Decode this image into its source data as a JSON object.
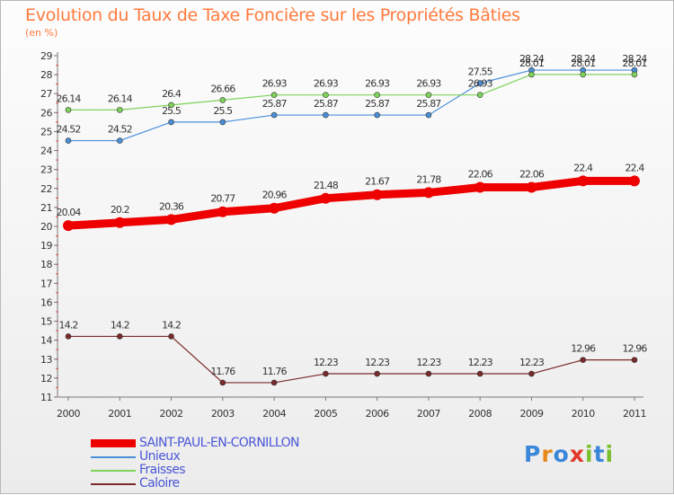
{
  "title": "Evolution du Taux de Taxe Foncière sur les Propriétés Bâties",
  "unit_label": "(en %)",
  "logo": {
    "text": "Proxiti",
    "colors": [
      "#3a86d9",
      "#e8891c",
      "#3a86d9",
      "#e23a2a",
      "#7bbf2f",
      "#3a86d9",
      "#7bbf2f"
    ]
  },
  "chart_data": {
    "type": "line",
    "title": "Evolution du Taux de Taxe Foncière sur les Propriétés Bâties",
    "ylabel": "(en %)",
    "xlabel": "",
    "ylim": [
      11,
      29
    ],
    "yticks": [
      11,
      12,
      13,
      14,
      15,
      16,
      17,
      18,
      19,
      20,
      21,
      22,
      23,
      24,
      25,
      26,
      27,
      28,
      29
    ],
    "x": [
      "2000",
      "2001",
      "2002",
      "2003",
      "2004",
      "2005",
      "2006",
      "2007",
      "2008",
      "2009",
      "2010",
      "2011"
    ],
    "grid": false,
    "legend_position": "bottom-left",
    "series": [
      {
        "name": "SAINT-PAUL-EN-CORNILLON",
        "color": "#ee0000",
        "values": [
          20.04,
          20.2,
          20.36,
          20.77,
          20.96,
          21.48,
          21.67,
          21.78,
          22.06,
          22.06,
          22.4,
          22.4
        ],
        "labels": [
          "20.04",
          "20.2",
          "20.36",
          "20.77",
          "20.96",
          "21.48",
          "21.67",
          "21.78",
          "22.06",
          "22.06",
          "22.4",
          "22.4"
        ]
      },
      {
        "name": "Unieux",
        "color": "#4a90d9",
        "values": [
          24.52,
          24.52,
          25.5,
          25.5,
          25.87,
          25.87,
          25.87,
          25.87,
          27.55,
          28.24,
          28.24,
          28.24
        ],
        "labels": [
          "24.52",
          "24.52",
          "25.5",
          "25.5",
          "25.87",
          "25.87",
          "25.87",
          "25.87",
          "27.55",
          "28.24",
          "28.24",
          "28.24"
        ]
      },
      {
        "name": "Fraisses",
        "color": "#7ed35a",
        "values": [
          26.14,
          26.14,
          26.4,
          26.66,
          26.93,
          26.93,
          26.93,
          26.93,
          26.93,
          28.01,
          28.01,
          28.01
        ],
        "labels": [
          "26.14",
          "26.14",
          "26.4",
          "26.66",
          "26.93",
          "26.93",
          "26.93",
          "26.93",
          "26.93",
          "28.01",
          "28.01",
          "28.01"
        ]
      },
      {
        "name": "Caloire",
        "color": "#7a2a2a",
        "values": [
          14.2,
          14.2,
          14.2,
          11.76,
          11.76,
          12.23,
          12.23,
          12.23,
          12.23,
          12.23,
          12.96,
          12.96
        ],
        "labels": [
          "14.2",
          "14.2",
          "14.2",
          "11.76",
          "11.76",
          "12.23",
          "12.23",
          "12.23",
          "12.23",
          "12.23",
          "12.96",
          "12.96"
        ]
      }
    ]
  }
}
